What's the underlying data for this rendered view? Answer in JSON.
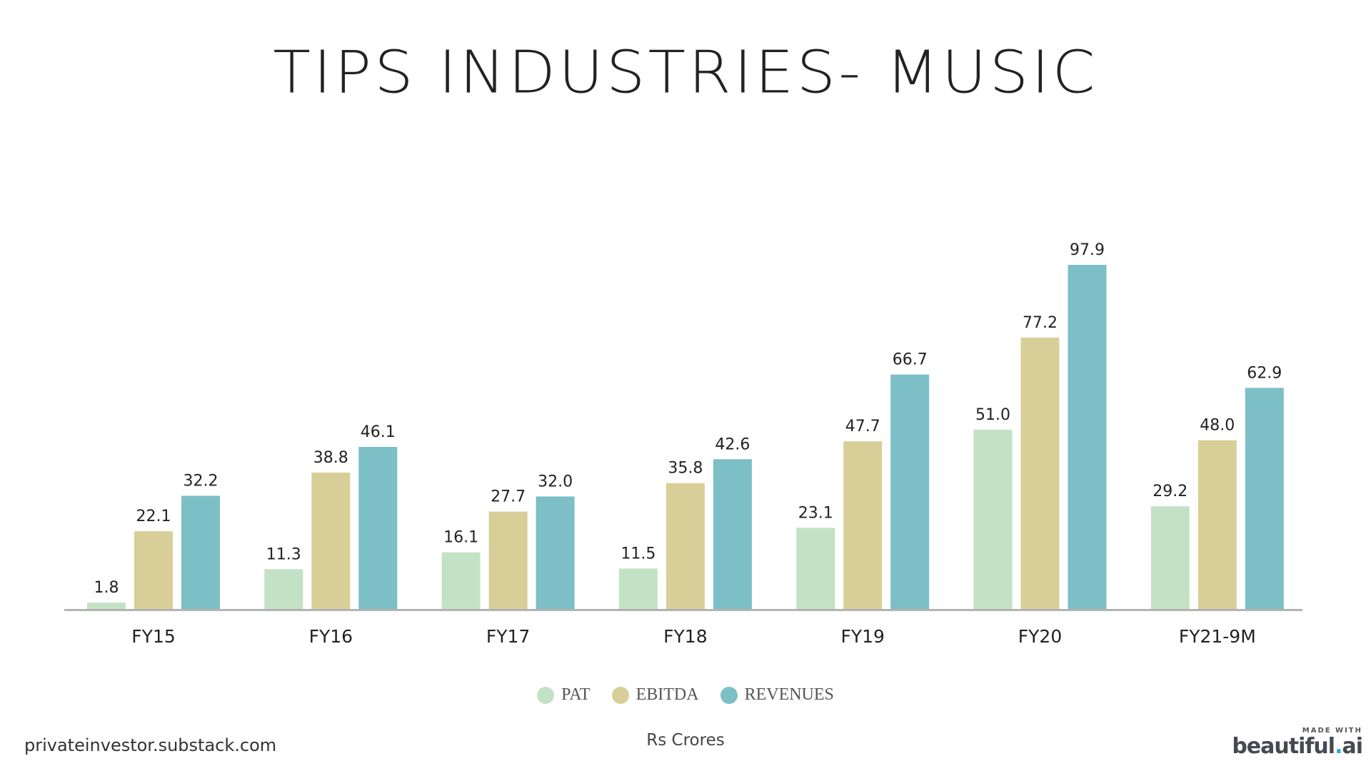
{
  "title": "TIPS INDUSTRIES- MUSIC",
  "unit_label": "Rs Crores",
  "footer": {
    "source": "privateinvestor.substack.com",
    "brand_top": "MADE WITH",
    "brand_main_prefix": "beautiful",
    "brand_main_dot": ".",
    "brand_main_suffix": "ai"
  },
  "chart_data": {
    "type": "bar",
    "categories": [
      "FY15",
      "FY16",
      "FY17",
      "FY18",
      "FY19",
      "FY20",
      "FY21-9M"
    ],
    "series": [
      {
        "name": "PAT",
        "color": "#c3e2c5",
        "values": [
          1.8,
          11.3,
          16.1,
          11.5,
          23.1,
          51.0,
          29.2
        ]
      },
      {
        "name": "EBITDA",
        "color": "#d7cf97",
        "values": [
          22.1,
          38.8,
          27.7,
          35.8,
          47.7,
          77.2,
          48.0
        ]
      },
      {
        "name": "REVENUES",
        "color": "#7cbfc6",
        "values": [
          32.2,
          46.1,
          32.0,
          42.6,
          66.7,
          97.9,
          62.9
        ]
      }
    ],
    "ylim": [
      0,
      100
    ],
    "grid": false,
    "legend_position": "bottom-center",
    "data_labels": true,
    "axis_color": "#b3b3b3"
  }
}
